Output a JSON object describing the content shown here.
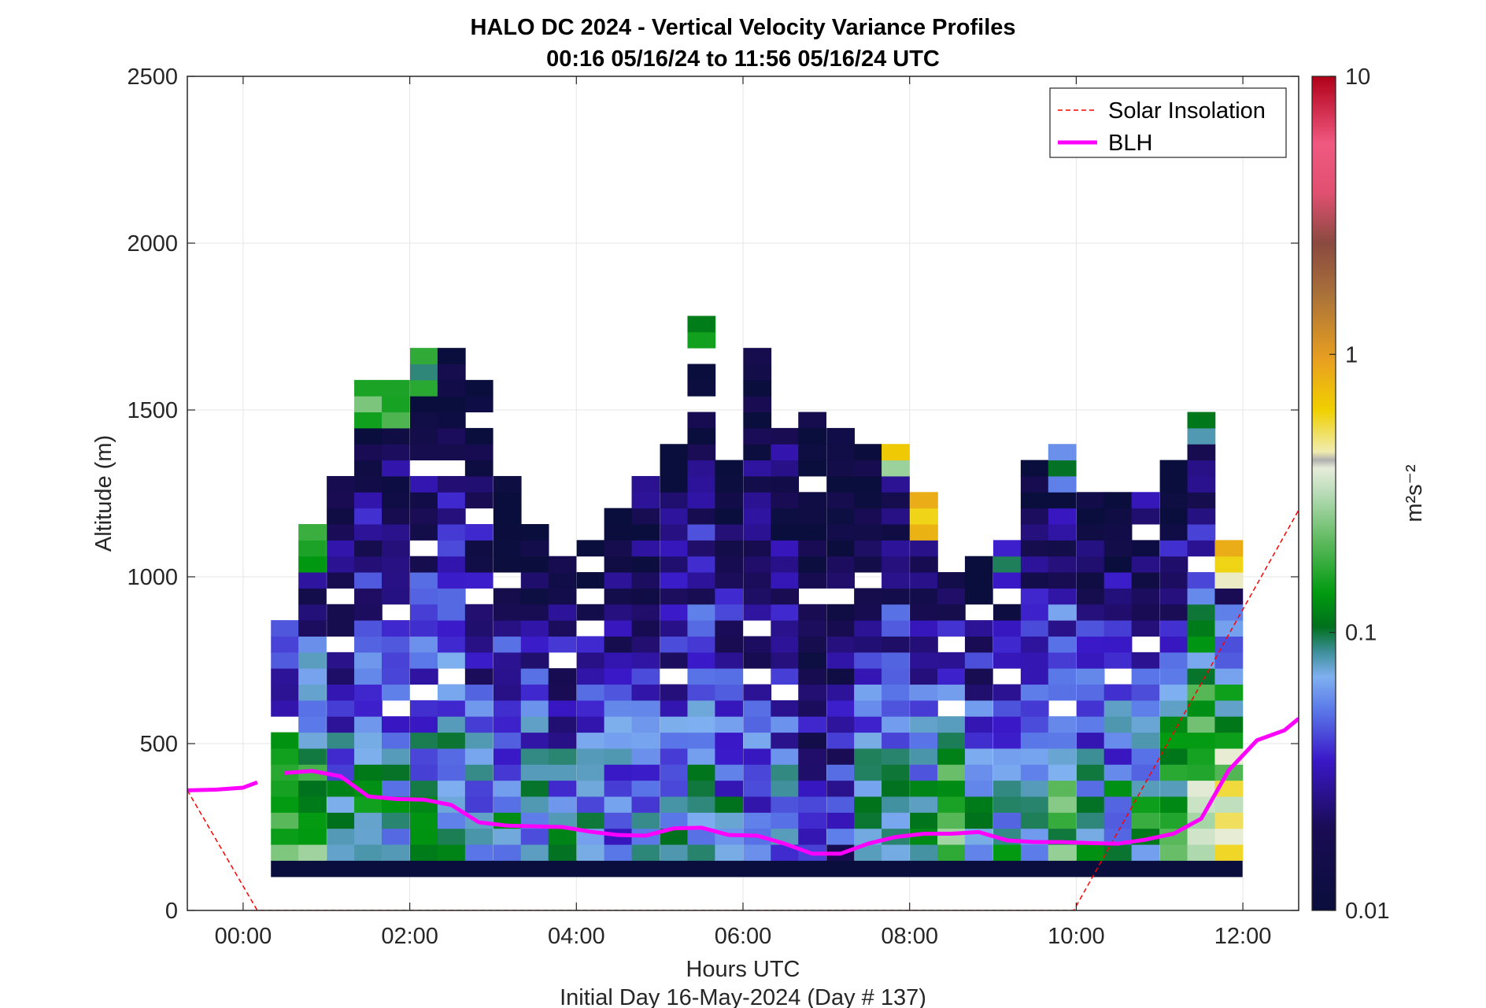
{
  "chart_data": {
    "type": "heatmap",
    "title": "HALO DC 2024 - Vertical Velocity Variance Profiles",
    "subtitle": "00:16 05/16/24 to 11:56 05/16/24  UTC",
    "xlabel": "Hours UTC",
    "xlabel2": "Initial Day 16-May-2024 (Day # 137)",
    "ylabel": "Altitude (m)",
    "xlim": [
      -0.67,
      12.67
    ],
    "ylim": [
      0,
      2500
    ],
    "x_ticks": [
      0,
      2,
      4,
      6,
      8,
      10,
      12
    ],
    "x_tick_labels": [
      "00:00",
      "02:00",
      "04:00",
      "06:00",
      "08:00",
      "10:00",
      "12:00"
    ],
    "y_ticks": [
      0,
      500,
      1000,
      1500,
      2000,
      2500
    ],
    "y_tick_labels": [
      "0",
      "500",
      "1000",
      "1500",
      "2000",
      "2500"
    ],
    "grid": true,
    "legend": {
      "position": "top-right",
      "entries": [
        {
          "label": "Solar Insolation",
          "color": "#ff0000",
          "style": "dashed"
        },
        {
          "label": "BLH",
          "color": "#ff00ff",
          "style": "solid"
        }
      ]
    },
    "colorbar": {
      "label": "m²s⁻²",
      "scale": "log",
      "range": [
        0.01,
        10
      ],
      "tick_values": [
        0.01,
        0.1,
        1,
        10
      ],
      "tick_labels": [
        "0.01",
        "0.1",
        "1",
        "10"
      ]
    },
    "heatmap": {
      "description_units": "time in hours UTC, altitude in m, variance in m^2 s^-2",
      "bin_hours": 0.333,
      "bin_altitude_m": 48,
      "columns": [
        {
          "t": 0.5,
          "top": 860,
          "near_surface_variance": 0.2,
          "upper_variance": 0.06
        },
        {
          "t": 0.83,
          "top": 1150,
          "near_surface_variance": 0.2,
          "upper_variance": 0.1
        },
        {
          "t": 1.17,
          "top": 1290,
          "near_surface_variance": 0.08,
          "upper_variance": 0.02
        },
        {
          "t": 1.5,
          "top": 1580,
          "near_surface_variance": 0.1,
          "upper_variance": 0.15
        },
        {
          "t": 1.83,
          "top": 1580,
          "near_surface_variance": 0.08,
          "upper_variance": 0.15
        },
        {
          "t": 2.17,
          "top": 1680,
          "near_surface_variance": 0.08,
          "upper_variance": 0.15
        },
        {
          "t": 2.5,
          "top": 1680,
          "near_surface_variance": 0.08,
          "upper_variance": 0.01
        },
        {
          "t": 2.83,
          "top": 1580,
          "near_surface_variance": 0.06,
          "upper_variance": 0.01
        },
        {
          "t": 3.17,
          "top": 1290,
          "near_surface_variance": 0.07,
          "upper_variance": 0.01
        },
        {
          "t": 3.5,
          "top": 1150,
          "near_surface_variance": 0.07,
          "upper_variance": 0.01
        },
        {
          "t": 3.83,
          "top": 1100,
          "near_surface_variance": 0.07,
          "upper_variance": 0.01
        },
        {
          "t": 4.17,
          "top": 1100,
          "near_surface_variance": 0.06,
          "upper_variance": 0.01
        },
        {
          "t": 4.5,
          "top": 1190,
          "near_surface_variance": 0.06,
          "upper_variance": 0.015
        },
        {
          "t": 4.83,
          "top": 1340,
          "near_surface_variance": 0.07,
          "upper_variance": 0.04
        },
        {
          "t": 5.17,
          "top": 1390,
          "near_surface_variance": 0.07,
          "upper_variance": 0.01
        },
        {
          "t": 5.5,
          "top": 1780,
          "near_surface_variance": 0.07,
          "upper_variance": 0.1
        },
        {
          "t": 5.83,
          "top": 1340,
          "near_surface_variance": 0.06,
          "upper_variance": 0.01
        },
        {
          "t": 6.17,
          "top": 1680,
          "near_surface_variance": 0.05,
          "upper_variance": 0.01
        },
        {
          "t": 6.5,
          "top": 1440,
          "near_surface_variance": 0.06,
          "upper_variance": 0.02
        },
        {
          "t": 6.83,
          "top": 1480,
          "near_surface_variance": 0.03,
          "upper_variance": 0.01
        },
        {
          "t": 7.17,
          "top": 1440,
          "near_surface_variance": 0.03,
          "upper_variance": 0.01
        },
        {
          "t": 7.5,
          "top": 1390,
          "near_surface_variance": 0.07,
          "upper_variance": 0.01
        },
        {
          "t": 7.83,
          "top": 1440,
          "near_surface_variance": 0.08,
          "upper_variance": 0.5
        },
        {
          "t": 8.17,
          "top": 1240,
          "near_surface_variance": 0.1,
          "upper_variance": 0.7
        },
        {
          "t": 8.5,
          "top": 1000,
          "near_surface_variance": 0.2,
          "upper_variance": 0.02
        },
        {
          "t": 8.83,
          "top": 1050,
          "near_surface_variance": 0.07,
          "upper_variance": 0.01
        },
        {
          "t": 9.17,
          "top": 1100,
          "near_surface_variance": 0.08,
          "upper_variance": 0.06
        },
        {
          "t": 9.5,
          "top": 1340,
          "near_surface_variance": 0.07,
          "upper_variance": 0.01
        },
        {
          "t": 9.83,
          "top": 1390,
          "near_surface_variance": 0.15,
          "upper_variance": 0.06
        },
        {
          "t": 10.17,
          "top": 1240,
          "near_surface_variance": 0.08,
          "upper_variance": 0.01
        },
        {
          "t": 10.5,
          "top": 1240,
          "near_surface_variance": 0.08,
          "upper_variance": 0.01
        },
        {
          "t": 10.83,
          "top": 1240,
          "near_surface_variance": 0.1,
          "upper_variance": 0.02
        },
        {
          "t": 11.17,
          "top": 1340,
          "near_surface_variance": 0.15,
          "upper_variance": 0.01
        },
        {
          "t": 11.5,
          "top": 1500,
          "near_surface_variance": 0.3,
          "upper_variance": 0.12
        },
        {
          "t": 11.83,
          "top": 1100,
          "near_surface_variance": 0.5,
          "upper_variance": 0.6
        }
      ]
    },
    "series": [
      {
        "name": "Solar Insolation",
        "style": "dashed",
        "color": "#ff0000",
        "x": [
          -0.67,
          0.17,
          9.97,
          12.67
        ],
        "y": [
          360,
          0,
          0,
          1200
        ]
      },
      {
        "name": "BLH",
        "style": "solid",
        "color": "#ff00ff",
        "segments": [
          {
            "x": [
              -0.67,
              -0.33,
              0.0,
              0.17
            ],
            "y": [
              360,
              362,
              368,
              384
            ]
          },
          {
            "x": [
              0.5,
              0.83,
              1.17,
              1.5,
              1.83,
              2.17,
              2.5,
              2.83,
              3.17,
              3.5,
              3.83,
              4.17,
              4.5,
              4.83,
              5.17,
              5.5,
              5.83,
              6.17,
              6.5,
              6.83,
              7.17,
              7.5,
              7.83,
              8.17,
              8.5,
              8.83,
              9.17,
              9.5,
              9.83,
              10.17,
              10.5,
              10.83,
              11.17,
              11.5,
              11.83,
              12.17,
              12.5,
              12.67
            ],
            "y": [
              412,
              418,
              402,
              342,
              334,
              332,
              316,
              264,
              254,
              252,
              250,
              236,
              226,
              224,
              246,
              248,
              226,
              224,
              200,
              170,
              170,
              200,
              220,
              230,
              230,
              235,
              210,
              205,
              205,
              202,
              200,
              212,
              230,
              275,
              420,
              510,
              540,
              575
            ]
          }
        ]
      }
    ]
  }
}
